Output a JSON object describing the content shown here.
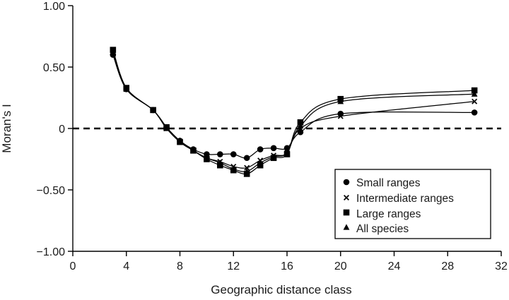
{
  "chart_data": {
    "type": "line",
    "title": "",
    "xlabel": "Geographic distance class",
    "ylabel": "Moran's I",
    "xlim": [
      0,
      32
    ],
    "ylim": [
      -1.0,
      1.0
    ],
    "x_ticks": [
      0,
      4,
      8,
      12,
      16,
      20,
      24,
      28,
      32
    ],
    "x_tick_labels": [
      "0",
      "4",
      "8",
      "12",
      "16",
      "20",
      "24",
      "28",
      "32"
    ],
    "y_ticks": [
      1.0,
      0.5,
      0,
      -0.5,
      -1.0
    ],
    "y_tick_labels": [
      "1.00",
      "0.50",
      "0",
      "−0.50",
      "−1.00"
    ],
    "reference_line": {
      "y": 0,
      "style": "dashed"
    },
    "grid": false,
    "legend_position": "bottom-right",
    "series": [
      {
        "name": "Small ranges",
        "marker": "circle",
        "points": [
          [
            3,
            0.6
          ],
          [
            4,
            0.32
          ],
          [
            6,
            0.15
          ],
          [
            7,
            0.01
          ],
          [
            8,
            -0.1
          ],
          [
            9,
            -0.17
          ],
          [
            10,
            -0.21
          ],
          [
            11,
            -0.21
          ],
          [
            12,
            -0.21
          ],
          [
            13,
            -0.24
          ],
          [
            14,
            -0.17
          ],
          [
            15,
            -0.16
          ],
          [
            16,
            -0.16
          ],
          [
            17,
            -0.03
          ],
          [
            20,
            0.12
          ],
          [
            30,
            0.13
          ]
        ]
      },
      {
        "name": "Intermediate ranges",
        "marker": "x",
        "points": [
          [
            3,
            0.61
          ],
          [
            4,
            0.32
          ],
          [
            6,
            0.15
          ],
          [
            7,
            0.0
          ],
          [
            8,
            -0.11
          ],
          [
            9,
            -0.18
          ],
          [
            10,
            -0.24
          ],
          [
            11,
            -0.27
          ],
          [
            12,
            -0.31
          ],
          [
            13,
            -0.32
          ],
          [
            14,
            -0.26
          ],
          [
            15,
            -0.22
          ],
          [
            16,
            -0.2
          ],
          [
            17,
            0.0
          ],
          [
            20,
            0.1
          ],
          [
            30,
            0.22
          ]
        ]
      },
      {
        "name": "Large ranges",
        "marker": "square",
        "points": [
          [
            3,
            0.64
          ],
          [
            4,
            0.33
          ],
          [
            6,
            0.15
          ],
          [
            7,
            0.01
          ],
          [
            8,
            -0.11
          ],
          [
            9,
            -0.18
          ],
          [
            10,
            -0.25
          ],
          [
            11,
            -0.3
          ],
          [
            12,
            -0.34
          ],
          [
            13,
            -0.37
          ],
          [
            14,
            -0.3
          ],
          [
            15,
            -0.24
          ],
          [
            16,
            -0.21
          ],
          [
            17,
            0.05
          ],
          [
            20,
            0.24
          ],
          [
            30,
            0.31
          ]
        ]
      },
      {
        "name": "All species",
        "marker": "triangle",
        "points": [
          [
            3,
            0.62
          ],
          [
            4,
            0.32
          ],
          [
            6,
            0.15
          ],
          [
            7,
            0.0
          ],
          [
            8,
            -0.1
          ],
          [
            9,
            -0.18
          ],
          [
            10,
            -0.24
          ],
          [
            11,
            -0.28
          ],
          [
            12,
            -0.33
          ],
          [
            13,
            -0.35
          ],
          [
            14,
            -0.28
          ],
          [
            15,
            -0.23
          ],
          [
            16,
            -0.2
          ],
          [
            17,
            0.02
          ],
          [
            20,
            0.22
          ],
          [
            30,
            0.28
          ]
        ]
      }
    ]
  }
}
